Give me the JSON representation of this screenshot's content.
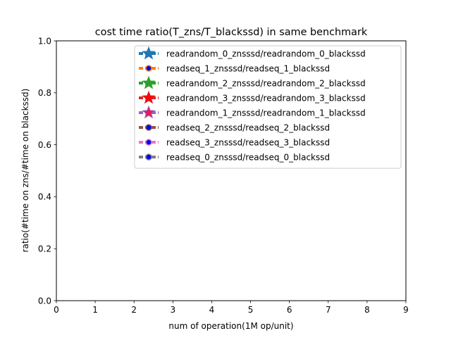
{
  "chart_data": {
    "type": "line",
    "title": "cost time ratio(T_zns/T_blackssd) in same benchmark",
    "xlabel": "num of operation(1M op/unit)",
    "ylabel": "ratio(#time on zns/#time on blackssd)",
    "xlim": [
      0,
      9
    ],
    "ylim": [
      0,
      1
    ],
    "xticks": [
      "0",
      "1",
      "2",
      "3",
      "4",
      "5",
      "6",
      "7",
      "8",
      "9"
    ],
    "yticks": [
      "0.0",
      "0.2",
      "0.4",
      "0.6",
      "0.8",
      "1.0"
    ],
    "grid": false,
    "legend_position": "top-right",
    "series": [
      {
        "name": "readrandom_0_znsssd/readrandom_0_blackssd",
        "color": "#1f77b4",
        "marker": "star",
        "marker_color": "#1f77b4",
        "values": []
      },
      {
        "name": "readseq_1_znsssd/readseq_1_blackssd",
        "color": "#ff7f0e",
        "marker": "circle",
        "marker_color": "#0000ff",
        "values": []
      },
      {
        "name": "readrandom_2_znsssd/readrandom_2_blackssd",
        "color": "#2ca02c",
        "marker": "star",
        "marker_color": "#2ca02c",
        "values": []
      },
      {
        "name": "readrandom_3_znsssd/readrandom_3_blackssd",
        "color": "#d62728",
        "marker": "star",
        "marker_color": "#ff0000",
        "values": []
      },
      {
        "name": "readrandom_1_znsssd/readrandom_1_blackssd",
        "color": "#9467bd",
        "marker": "star",
        "marker_color": "#e8175d",
        "values": []
      },
      {
        "name": "readseq_2_znsssd/readseq_2_blackssd",
        "color": "#8c564b",
        "marker": "circle",
        "marker_color": "#0000ff",
        "values": []
      },
      {
        "name": "readseq_3_znsssd/readseq_3_blackssd",
        "color": "#e377c2",
        "marker": "circle",
        "marker_color": "#0000ff",
        "values": []
      },
      {
        "name": "readseq_0_znsssd/readseq_0_blackssd",
        "color": "#7f7f7f",
        "marker": "circle",
        "marker_color": "#0000ff",
        "values": []
      }
    ]
  }
}
